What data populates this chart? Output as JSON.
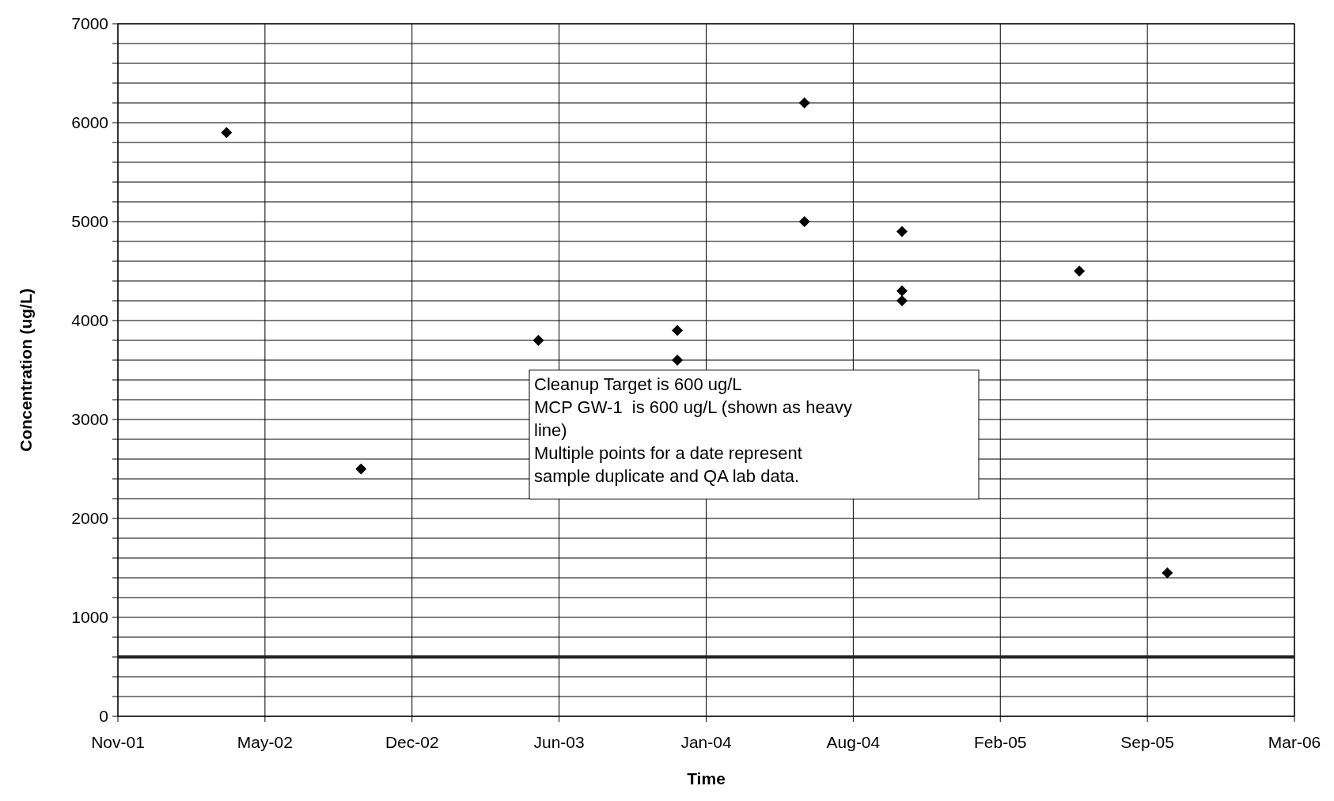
{
  "chart_data": {
    "type": "scatter",
    "xlabel": "Time",
    "ylabel": "Concentration (ug/L)",
    "x": [
      "2002-04-06",
      "2002-10-05",
      "2003-06-02",
      "2003-12-07",
      "2003-12-07",
      "2004-05-27",
      "2004-05-27",
      "2004-10-06",
      "2004-10-06",
      "2004-10-06",
      "2005-06-03",
      "2005-09-30"
    ],
    "series": [
      {
        "color": "#000000",
        "values": [
          5900,
          2500,
          3800,
          3900,
          3600,
          6200,
          5000,
          4900,
          4300,
          4200,
          4500,
          1450
        ]
      }
    ],
    "xlim": [
      "2001-11-10",
      "2006-03-21"
    ],
    "xticks": [
      {
        "value": "2001-11-10",
        "label": "Nov-01"
      },
      {
        "value": "2002-05-28",
        "label": "May-02"
      },
      {
        "value": "2002-12-13",
        "label": "Dec-02"
      },
      {
        "value": "2003-06-30",
        "label": "Jun-03"
      },
      {
        "value": "2004-01-15",
        "label": "Jan-04"
      },
      {
        "value": "2004-08-01",
        "label": "Aug-04"
      },
      {
        "value": "2005-02-16",
        "label": "Feb-05"
      },
      {
        "value": "2005-09-03",
        "label": "Sep-05"
      },
      {
        "value": "2006-03-21",
        "label": "Mar-06"
      }
    ],
    "ylim": [
      0,
      7000
    ],
    "yticks": [
      0,
      {
        "value": 200,
        "label": null
      },
      {
        "value": 400,
        "label": null
      },
      {
        "value": 600,
        "label": null
      },
      {
        "value": 800,
        "label": null
      },
      1000,
      {
        "value": 1200,
        "label": null
      },
      {
        "value": 1400,
        "label": null
      },
      {
        "value": 1600,
        "label": null
      },
      {
        "value": 1800,
        "label": null
      },
      2000,
      {
        "value": 2200,
        "label": null
      },
      {
        "value": 2400,
        "label": null
      },
      {
        "value": 2600,
        "label": null
      },
      {
        "value": 2800,
        "label": null
      },
      3000,
      {
        "value": 3200,
        "label": null
      },
      {
        "value": 3400,
        "label": null
      },
      {
        "value": 3600,
        "label": null
      },
      {
        "value": 3800,
        "label": null
      },
      4000,
      {
        "value": 4200,
        "label": null
      },
      {
        "value": 4400,
        "label": null
      },
      {
        "value": 4600,
        "label": null
      },
      {
        "value": 4800,
        "label": null
      },
      5000,
      {
        "value": 5200,
        "label": null
      },
      {
        "value": 5400,
        "label": null
      },
      {
        "value": 5600,
        "label": null
      },
      {
        "value": 5800,
        "label": null
      },
      6000,
      {
        "value": 6200,
        "label": null
      },
      {
        "value": 6400,
        "label": null
      },
      {
        "value": 6600,
        "label": null
      },
      {
        "value": 6800,
        "label": null
      },
      7000
    ],
    "ref_lines": [
      {
        "axis": "y",
        "value": 600,
        "color": "#222222",
        "line_style": "solid"
      }
    ],
    "annotations": [
      "Cleanup Target is 600 ug/L\nMCP GW-1  is 600 ug/L (shown as heavy\nline)\nMultiple points for a date represent\nsample duplicate and QA lab data."
    ],
    "grid": true,
    "marker": "diamond"
  }
}
